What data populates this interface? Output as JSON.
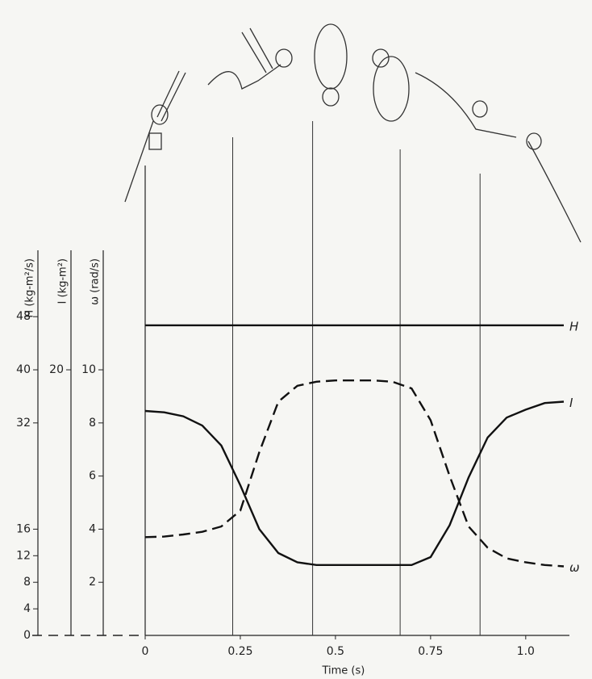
{
  "chart_data": {
    "type": "line",
    "x_label": "Time (s)",
    "x": [
      0,
      0.05,
      0.1,
      0.15,
      0.2,
      0.25,
      0.3,
      0.35,
      0.4,
      0.45,
      0.5,
      0.55,
      0.6,
      0.65,
      0.7,
      0.75,
      0.8,
      0.85,
      0.9,
      0.95,
      1.0,
      1.05,
      1.1
    ],
    "xlim": [
      0,
      1.1
    ],
    "xticks": [
      0,
      0.25,
      0.5,
      0.75,
      {
        "value": 1,
        "label": "1.0"
      }
    ],
    "phase_lines": [
      0.23,
      0.44,
      0.67,
      0.88
    ],
    "axes": [
      {
        "label": "H (kg-m²/s)",
        "lim": [
          0,
          58
        ],
        "ticks": [
          0,
          4,
          8,
          12,
          16,
          32,
          40,
          48
        ]
      },
      {
        "label": "I (kg-m²)",
        "lim": [
          0,
          29
        ],
        "ticks": [
          20
        ]
      },
      {
        "label": "ω (rad/s)",
        "lim": [
          0,
          14.5
        ],
        "ticks": [
          2,
          4,
          6,
          8,
          10
        ]
      }
    ],
    "series": [
      {
        "name": "H",
        "axis": 0,
        "color": "#111111",
        "style": "solid",
        "values": [
          46.7,
          46.7,
          46.7,
          46.7,
          46.7,
          46.7,
          46.7,
          46.7,
          46.7,
          46.7,
          46.7,
          46.7,
          46.7,
          46.7,
          46.7,
          46.7,
          46.7,
          46.7,
          46.7,
          46.7,
          46.7,
          46.7,
          46.7
        ]
      },
      {
        "name": "I",
        "axis": 1,
        "color": "#111111",
        "style": "solid",
        "values": [
          16.9,
          16.8,
          16.5,
          15.8,
          14.3,
          11.3,
          8.0,
          6.2,
          5.5,
          5.3,
          5.3,
          5.3,
          5.3,
          5.3,
          5.3,
          5.9,
          8.3,
          11.9,
          14.9,
          16.4,
          17.0,
          17.5,
          17.6
        ]
      },
      {
        "name": "ω",
        "axis": 2,
        "color": "#111111",
        "style": "dashed",
        "values": [
          3.7,
          3.72,
          3.8,
          3.9,
          4.1,
          4.7,
          6.9,
          8.8,
          9.4,
          9.55,
          9.6,
          9.6,
          9.6,
          9.55,
          9.3,
          8.1,
          6.0,
          4.1,
          3.3,
          2.9,
          2.75,
          2.65,
          2.6
        ]
      }
    ]
  }
}
